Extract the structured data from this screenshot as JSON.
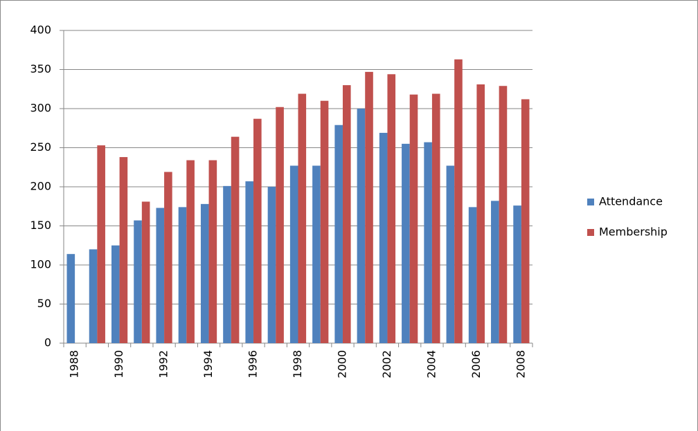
{
  "chart_data": {
    "type": "bar",
    "categories": [
      "1988",
      null,
      "1990",
      null,
      "1992",
      null,
      "1994",
      null,
      "1996",
      null,
      "1998",
      null,
      "2000",
      null,
      "2002",
      null,
      "2004",
      null,
      "2006",
      null,
      "2008"
    ],
    "series": [
      {
        "name": "Attendance",
        "color": "#4f81bd",
        "values": [
          114,
          120,
          125,
          157,
          173,
          174,
          178,
          201,
          207,
          200,
          227,
          227,
          279,
          300,
          269,
          255,
          257,
          227,
          174,
          182,
          176
        ]
      },
      {
        "name": "Membership",
        "color": "#c0504d",
        "values": [
          null,
          253,
          238,
          181,
          219,
          234,
          234,
          264,
          287,
          302,
          319,
          310,
          330,
          347,
          344,
          318,
          319,
          363,
          331,
          329,
          312
        ]
      }
    ],
    "ylim": [
      0,
      400
    ],
    "yticks": [
      0,
      50,
      100,
      150,
      200,
      250,
      300,
      350,
      400
    ],
    "grid": true,
    "legend": "right"
  }
}
